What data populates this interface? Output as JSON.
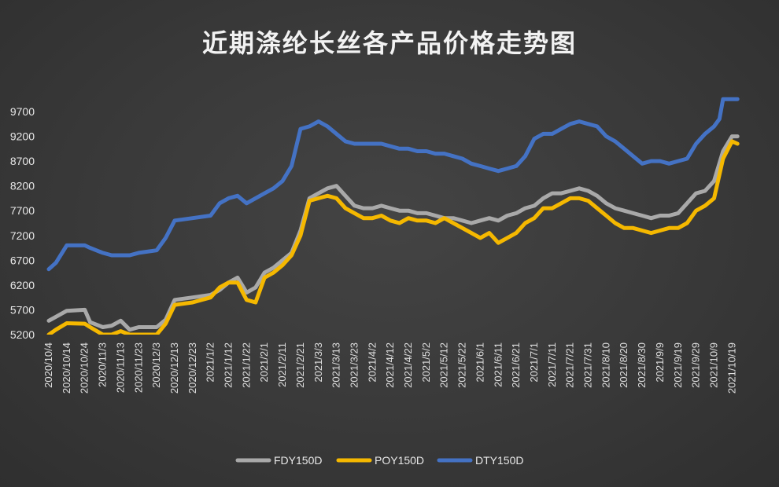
{
  "chart_data": {
    "type": "line",
    "title": "近期涤纶长丝各产品价格走势图",
    "xlabel": "",
    "ylabel": "",
    "ylim": [
      5200,
      9700
    ],
    "yticks": [
      5200,
      5700,
      6200,
      6700,
      7200,
      7700,
      8200,
      8700,
      9200,
      9700
    ],
    "x_tick_labels": [
      "2020/10/4",
      "2020/10/14",
      "2020/10/24",
      "2020/11/3",
      "2020/11/13",
      "2020/11/23",
      "2020/12/3",
      "2020/12/13",
      "2020/12/23",
      "2021/1/2",
      "2021/1/12",
      "2021/1/22",
      "2021/2/1",
      "2021/2/11",
      "2021/2/21",
      "2021/3/3",
      "2021/3/13",
      "2021/3/23",
      "2021/4/2",
      "2021/4/12",
      "2021/4/22",
      "2021/5/2",
      "2021/5/12",
      "2021/5/22",
      "2021/6/1",
      "2021/6/11",
      "2021/6/21",
      "2021/7/1",
      "2021/7/11",
      "2021/7/21",
      "2021/7/31",
      "2021/8/10",
      "2021/8/20",
      "2021/8/30",
      "2021/9/9",
      "2021/9/19",
      "2021/9/29",
      "2021/10/9",
      "2021/10/19"
    ],
    "legend_position": "bottom",
    "grid": false,
    "series": [
      {
        "name": "FDY150D",
        "color": "#a9a9a9",
        "x": [
          "2020/10/4",
          "2020/10/8",
          "2020/10/14",
          "2020/10/24",
          "2020/10/27",
          "2020/11/3",
          "2020/11/8",
          "2020/11/13",
          "2020/11/18",
          "2020/11/23",
          "2020/12/3",
          "2020/12/8",
          "2020/12/13",
          "2020/12/23",
          "2021/1/2",
          "2021/1/7",
          "2021/1/12",
          "2021/1/17",
          "2021/1/22",
          "2021/1/27",
          "2021/2/1",
          "2021/2/6",
          "2021/2/11",
          "2021/2/16",
          "2021/2/21",
          "2021/2/26",
          "2021/3/3",
          "2021/3/8",
          "2021/3/13",
          "2021/3/18",
          "2021/3/23",
          "2021/3/28",
          "2021/4/2",
          "2021/4/7",
          "2021/4/12",
          "2021/4/17",
          "2021/4/22",
          "2021/4/27",
          "2021/5/2",
          "2021/5/7",
          "2021/5/12",
          "2021/5/17",
          "2021/5/22",
          "2021/5/27",
          "2021/6/1",
          "2021/6/6",
          "2021/6/11",
          "2021/6/16",
          "2021/6/21",
          "2021/6/26",
          "2021/7/1",
          "2021/7/6",
          "2021/7/11",
          "2021/7/16",
          "2021/7/21",
          "2021/7/26",
          "2021/7/31",
          "2021/8/5",
          "2021/8/10",
          "2021/8/15",
          "2021/8/20",
          "2021/8/25",
          "2021/8/30",
          "2021/9/4",
          "2021/9/9",
          "2021/9/14",
          "2021/9/19",
          "2021/9/24",
          "2021/9/29",
          "2021/10/4",
          "2021/10/9",
          "2021/10/14",
          "2021/10/19",
          "2021/10/22"
        ],
        "y": [
          5480,
          5560,
          5680,
          5700,
          5450,
          5350,
          5380,
          5480,
          5300,
          5350,
          5350,
          5500,
          5900,
          5950,
          6000,
          6100,
          6250,
          6350,
          6050,
          6150,
          6450,
          6550,
          6700,
          6850,
          7300,
          7950,
          8050,
          8150,
          8200,
          8000,
          7800,
          7750,
          7750,
          7800,
          7750,
          7700,
          7700,
          7650,
          7650,
          7600,
          7550,
          7550,
          7500,
          7450,
          7500,
          7550,
          7500,
          7600,
          7650,
          7750,
          7800,
          7950,
          8050,
          8050,
          8100,
          8150,
          8100,
          8000,
          7850,
          7750,
          7700,
          7650,
          7600,
          7550,
          7600,
          7600,
          7650,
          7850,
          8050,
          8100,
          8300,
          8900,
          9200,
          9200
        ]
      },
      {
        "name": "POY150D",
        "color": "#f5b800",
        "x": [
          "2020/10/4",
          "2020/10/8",
          "2020/10/14",
          "2020/10/24",
          "2020/10/27",
          "2020/11/3",
          "2020/11/8",
          "2020/11/13",
          "2020/11/18",
          "2020/11/23",
          "2020/12/3",
          "2020/12/8",
          "2020/12/13",
          "2020/12/23",
          "2021/1/2",
          "2021/1/7",
          "2021/1/12",
          "2021/1/17",
          "2021/1/22",
          "2021/1/27",
          "2021/2/1",
          "2021/2/6",
          "2021/2/11",
          "2021/2/16",
          "2021/2/21",
          "2021/2/26",
          "2021/3/3",
          "2021/3/8",
          "2021/3/13",
          "2021/3/18",
          "2021/3/23",
          "2021/3/28",
          "2021/4/2",
          "2021/4/7",
          "2021/4/12",
          "2021/4/17",
          "2021/4/22",
          "2021/4/27",
          "2021/5/2",
          "2021/5/7",
          "2021/5/12",
          "2021/5/17",
          "2021/5/22",
          "2021/5/27",
          "2021/6/1",
          "2021/6/6",
          "2021/6/11",
          "2021/6/16",
          "2021/6/21",
          "2021/6/26",
          "2021/7/1",
          "2021/7/6",
          "2021/7/11",
          "2021/7/16",
          "2021/7/21",
          "2021/7/26",
          "2021/7/31",
          "2021/8/5",
          "2021/8/10",
          "2021/8/15",
          "2021/8/20",
          "2021/8/25",
          "2021/8/30",
          "2021/9/4",
          "2021/9/9",
          "2021/9/14",
          "2021/9/19",
          "2021/9/24",
          "2021/9/29",
          "2021/10/4",
          "2021/10/9",
          "2021/10/14",
          "2021/10/19",
          "2021/10/22"
        ],
        "y": [
          5200,
          5300,
          5430,
          5420,
          5350,
          5200,
          5200,
          5270,
          5200,
          5200,
          5200,
          5420,
          5800,
          5850,
          5950,
          6150,
          6250,
          6250,
          5900,
          5850,
          6350,
          6450,
          6600,
          6800,
          7200,
          7900,
          7950,
          8000,
          7950,
          7750,
          7650,
          7550,
          7550,
          7600,
          7500,
          7450,
          7550,
          7500,
          7500,
          7450,
          7550,
          7450,
          7350,
          7250,
          7150,
          7250,
          7050,
          7150,
          7250,
          7450,
          7550,
          7750,
          7750,
          7850,
          7950,
          7950,
          7900,
          7750,
          7600,
          7450,
          7350,
          7350,
          7300,
          7250,
          7300,
          7350,
          7350,
          7450,
          7700,
          7800,
          7950,
          8750,
          9100,
          9050
        ]
      },
      {
        "name": "DTY150D",
        "color": "#4472c4",
        "x": [
          "2020/10/4",
          "2020/10/8",
          "2020/10/14",
          "2020/10/24",
          "2020/10/27",
          "2020/11/3",
          "2020/11/8",
          "2020/11/13",
          "2020/11/18",
          "2020/11/23",
          "2020/12/3",
          "2020/12/8",
          "2020/12/13",
          "2020/12/23",
          "2021/1/2",
          "2021/1/7",
          "2021/1/12",
          "2021/1/17",
          "2021/1/22",
          "2021/1/27",
          "2021/2/1",
          "2021/2/6",
          "2021/2/11",
          "2021/2/16",
          "2021/2/21",
          "2021/2/26",
          "2021/3/3",
          "2021/3/8",
          "2021/3/13",
          "2021/3/18",
          "2021/3/23",
          "2021/3/28",
          "2021/4/2",
          "2021/4/7",
          "2021/4/12",
          "2021/4/17",
          "2021/4/22",
          "2021/4/27",
          "2021/5/2",
          "2021/5/7",
          "2021/5/12",
          "2021/5/17",
          "2021/5/22",
          "2021/5/27",
          "2021/6/1",
          "2021/6/6",
          "2021/6/11",
          "2021/6/16",
          "2021/6/21",
          "2021/6/26",
          "2021/7/1",
          "2021/7/6",
          "2021/7/11",
          "2021/7/16",
          "2021/7/21",
          "2021/7/26",
          "2021/7/31",
          "2021/8/5",
          "2021/8/10",
          "2021/8/15",
          "2021/8/20",
          "2021/8/25",
          "2021/8/30",
          "2021/9/4",
          "2021/9/9",
          "2021/9/14",
          "2021/9/19",
          "2021/9/24",
          "2021/9/29",
          "2021/10/4",
          "2021/10/9",
          "2021/10/12",
          "2021/10/14",
          "2021/10/22"
        ],
        "y": [
          6520,
          6650,
          7000,
          7000,
          6950,
          6850,
          6800,
          6800,
          6800,
          6850,
          6900,
          7150,
          7500,
          7550,
          7600,
          7850,
          7950,
          8000,
          7850,
          7950,
          8050,
          8150,
          8300,
          8600,
          9350,
          9400,
          9500,
          9400,
          9250,
          9100,
          9050,
          9050,
          9050,
          9050,
          9000,
          8950,
          8950,
          8900,
          8900,
          8850,
          8850,
          8800,
          8750,
          8650,
          8600,
          8550,
          8500,
          8550,
          8600,
          8800,
          9150,
          9250,
          9250,
          9350,
          9450,
          9500,
          9450,
          9400,
          9200,
          9100,
          8950,
          8800,
          8650,
          8700,
          8700,
          8650,
          8700,
          8750,
          9050,
          9250,
          9400,
          9550,
          9950,
          9950
        ]
      }
    ]
  }
}
